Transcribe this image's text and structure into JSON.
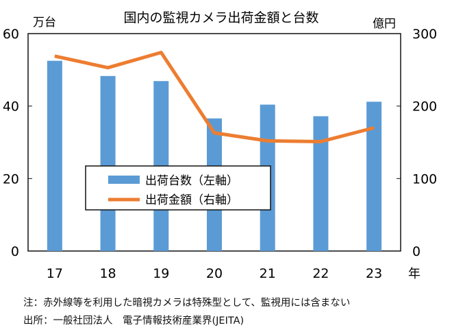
{
  "chart_data": {
    "type": "bar+line",
    "title": "国内の監視カメラ出荷金額と台数",
    "left_axis_unit": "万台",
    "right_axis_unit": "億円",
    "x_unit": "年",
    "categories": [
      "17",
      "18",
      "19",
      "20",
      "21",
      "22",
      "23"
    ],
    "left_ylim": [
      0,
      60
    ],
    "left_ticks": [
      "0",
      "20",
      "40",
      "60"
    ],
    "right_ylim": [
      0,
      300
    ],
    "right_ticks": [
      "0",
      "100",
      "200",
      "300"
    ],
    "series": [
      {
        "name": "出荷台数（左軸）",
        "type": "bar",
        "axis": "left",
        "color": "#5b9bd5",
        "values": [
          52.5,
          48.3,
          46.9,
          36.6,
          40.4,
          37.2,
          41.2
        ]
      },
      {
        "name": "出荷金額（右軸）",
        "type": "line",
        "axis": "right",
        "color": "#ed7d31",
        "values": [
          269,
          253,
          274,
          163,
          152,
          151,
          170
        ]
      }
    ],
    "legend_placement": "center-left",
    "grid": false
  },
  "notes": {
    "note": "注：赤外線等を利用した暗視カメラは特殊型として、監視用には含まない",
    "source": "出所：一般社団法人　電子情報技術産業界(JEITA)"
  }
}
